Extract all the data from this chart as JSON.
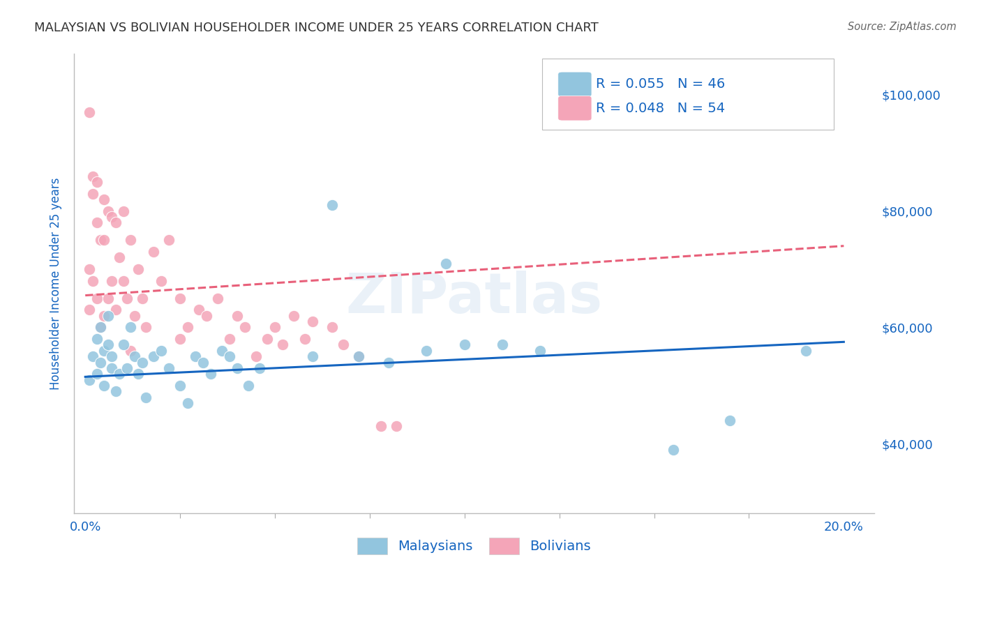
{
  "title": "MALAYSIAN VS BOLIVIAN HOUSEHOLDER INCOME UNDER 25 YEARS CORRELATION CHART",
  "source": "Source: ZipAtlas.com",
  "ylabel": "Householder Income Under 25 years",
  "xlabel_ticks_shown": [
    "0.0%",
    "20.0%"
  ],
  "xlabel_ticks_pos": [
    0.0,
    0.2
  ],
  "ylabel_ticks": [
    "$40,000",
    "$60,000",
    "$80,000",
    "$100,000"
  ],
  "ylabel_vals": [
    40000,
    60000,
    80000,
    100000
  ],
  "ylim": [
    28000,
    107000
  ],
  "xlim": [
    -0.003,
    0.208
  ],
  "R_malaysian": 0.055,
  "N_malaysian": 46,
  "R_bolivian": 0.048,
  "N_bolivian": 54,
  "legend_label_malaysian": "Malaysians",
  "legend_label_bolivian": "Bolivians",
  "color_malaysian": "#92c5de",
  "color_bolivian": "#f4a5b8",
  "trendline_color_malaysian": "#1565c0",
  "trendline_color_bolivian": "#e8607a",
  "watermark": "ZIPatlas",
  "malaysian_x": [
    0.001,
    0.002,
    0.003,
    0.003,
    0.004,
    0.004,
    0.005,
    0.005,
    0.006,
    0.006,
    0.007,
    0.007,
    0.008,
    0.009,
    0.01,
    0.011,
    0.012,
    0.013,
    0.014,
    0.015,
    0.016,
    0.018,
    0.02,
    0.022,
    0.025,
    0.027,
    0.029,
    0.031,
    0.033,
    0.036,
    0.038,
    0.04,
    0.043,
    0.046,
    0.06,
    0.065,
    0.072,
    0.08,
    0.09,
    0.095,
    0.1,
    0.11,
    0.12,
    0.155,
    0.17,
    0.19
  ],
  "malaysian_y": [
    51000,
    55000,
    52000,
    58000,
    54000,
    60000,
    50000,
    56000,
    57000,
    62000,
    55000,
    53000,
    49000,
    52000,
    57000,
    53000,
    60000,
    55000,
    52000,
    54000,
    48000,
    55000,
    56000,
    53000,
    50000,
    47000,
    55000,
    54000,
    52000,
    56000,
    55000,
    53000,
    50000,
    53000,
    55000,
    81000,
    55000,
    54000,
    56000,
    71000,
    57000,
    57000,
    56000,
    39000,
    44000,
    56000
  ],
  "bolivian_x": [
    0.001,
    0.001,
    0.001,
    0.002,
    0.002,
    0.002,
    0.003,
    0.003,
    0.003,
    0.004,
    0.004,
    0.005,
    0.005,
    0.005,
    0.006,
    0.006,
    0.007,
    0.007,
    0.008,
    0.008,
    0.009,
    0.01,
    0.01,
    0.011,
    0.012,
    0.013,
    0.014,
    0.015,
    0.016,
    0.018,
    0.02,
    0.022,
    0.025,
    0.027,
    0.03,
    0.032,
    0.035,
    0.038,
    0.04,
    0.042,
    0.045,
    0.048,
    0.05,
    0.052,
    0.055,
    0.058,
    0.06,
    0.065,
    0.068,
    0.072,
    0.078,
    0.082,
    0.025,
    0.012
  ],
  "bolivian_y": [
    97000,
    70000,
    63000,
    86000,
    83000,
    68000,
    85000,
    78000,
    65000,
    75000,
    60000,
    82000,
    75000,
    62000,
    80000,
    65000,
    79000,
    68000,
    78000,
    63000,
    72000,
    80000,
    68000,
    65000,
    75000,
    62000,
    70000,
    65000,
    60000,
    73000,
    68000,
    75000,
    65000,
    60000,
    63000,
    62000,
    65000,
    58000,
    62000,
    60000,
    55000,
    58000,
    60000,
    57000,
    62000,
    58000,
    61000,
    60000,
    57000,
    55000,
    43000,
    43000,
    58000,
    56000
  ],
  "background_color": "#ffffff",
  "grid_color": "#d0d0d0",
  "title_color": "#333333",
  "axis_label_color": "#1565c0",
  "source_color": "#666666",
  "minor_tick_positions": [
    0.025,
    0.05,
    0.075,
    0.1,
    0.125,
    0.15,
    0.175
  ]
}
